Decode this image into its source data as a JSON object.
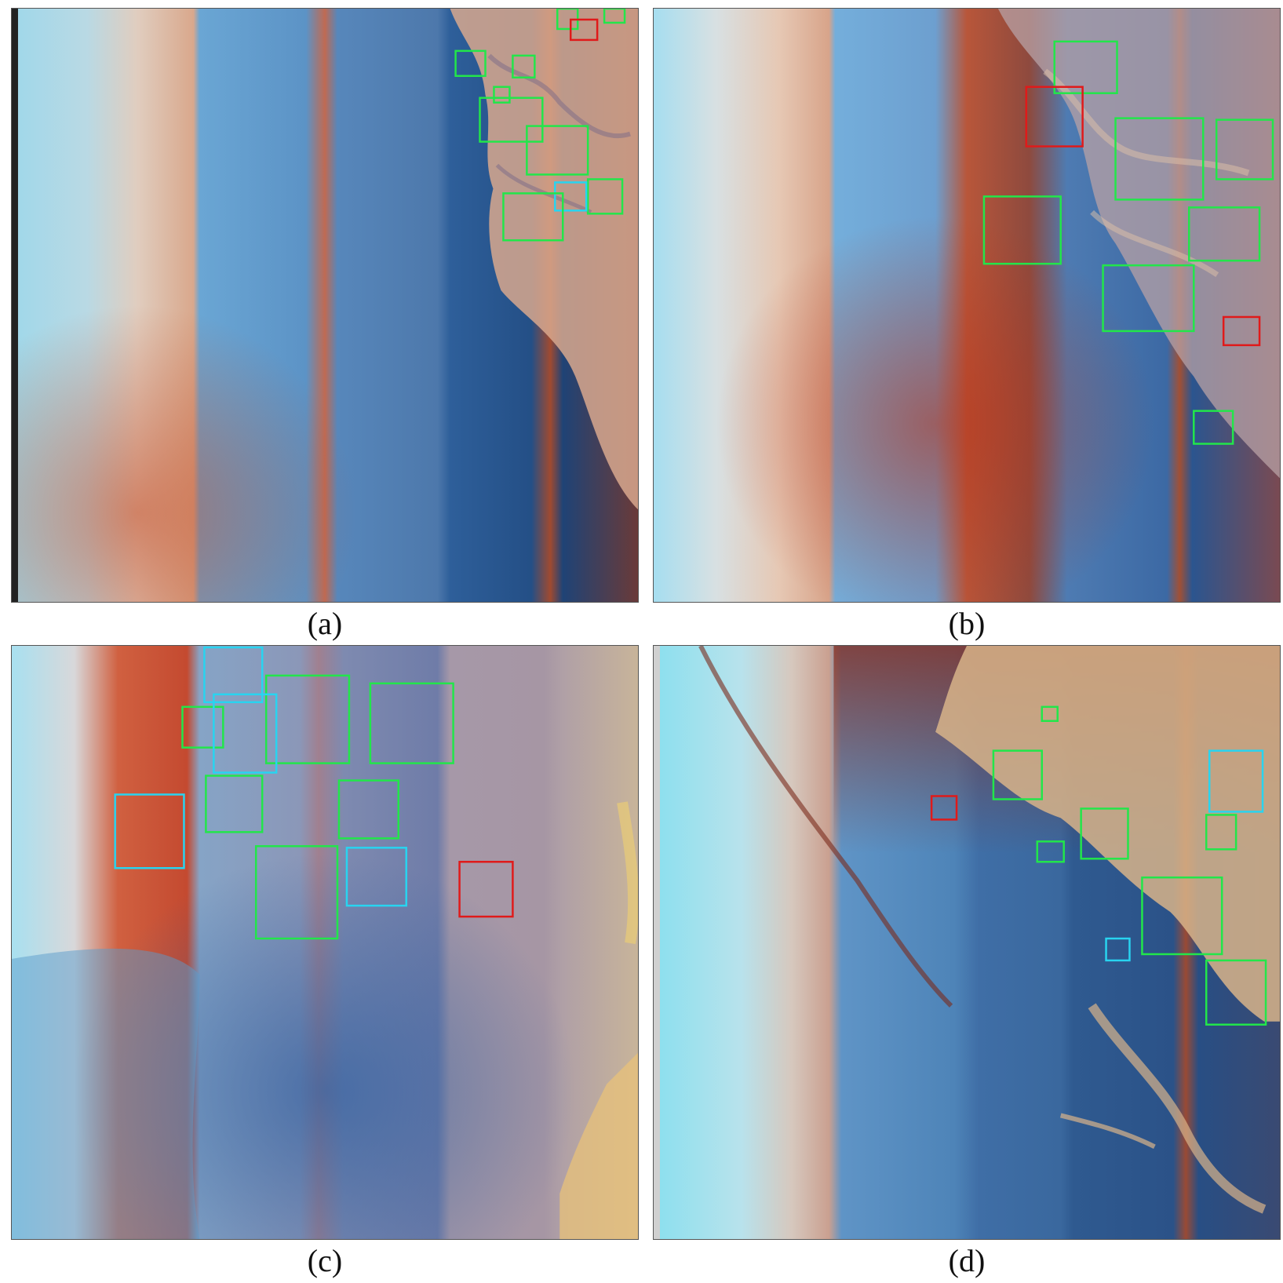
{
  "colors": {
    "eddy_green": "#22e64a",
    "eddy_red": "#e01a1a",
    "eddy_cyan": "#28d4f0"
  },
  "panels": [
    {
      "id": "a",
      "caption": "(a)"
    },
    {
      "id": "b",
      "caption": "(b)"
    },
    {
      "id": "c",
      "caption": "(c)"
    },
    {
      "id": "d",
      "caption": "(d)"
    }
  ]
}
